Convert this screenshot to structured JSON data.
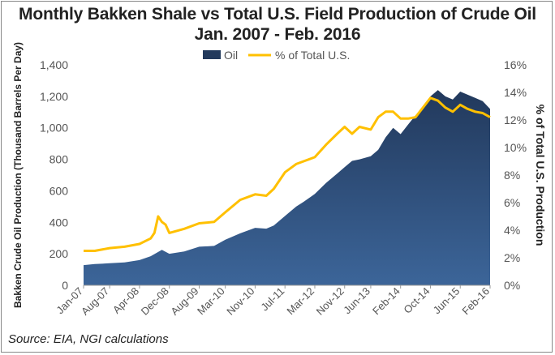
{
  "title_line1": "Monthly Bakken Shale vs Total U.S. Field Production of Crude Oil",
  "title_line2": "Jan. 2007 - Feb. 2016",
  "source": "Source: EIA, NGI calculations",
  "chart_data": {
    "type": "area",
    "title": "Monthly Bakken Shale vs Total U.S. Field Production of Crude Oil",
    "subtitle": "Jan. 2007 - Feb. 2016",
    "legend_position": "top",
    "grid": false,
    "colors": {
      "area_top": "#22395c",
      "area_bottom": "#3c6599",
      "line": "#ffc000",
      "axis_text": "#555555",
      "axis_line": "#999999"
    },
    "x_axis": {
      "ticks": [
        "Jan-07",
        "Aug-07",
        "Apr-08",
        "Dec-08",
        "Aug-09",
        "Mar-10",
        "Nov-10",
        "Jul-11",
        "Mar-12",
        "Nov-12",
        "Jun-13",
        "Feb-14",
        "Oct-14",
        "Jun-15",
        "Feb-16"
      ]
    },
    "y_left": {
      "label": "Bakken Crude Oil Production (Thousand Barrels Per Day)",
      "range": [
        0,
        1400
      ],
      "ticks": [
        "0",
        "200",
        "400",
        "600",
        "800",
        "1,000",
        "1,200",
        "1,400"
      ]
    },
    "y_right": {
      "label": "% of Total U.S. Production",
      "range": [
        0,
        16
      ],
      "ticks": [
        "0%",
        "2%",
        "4%",
        "6%",
        "8%",
        "10%",
        "12%",
        "14%",
        "16%"
      ]
    },
    "series": [
      {
        "name": "Oil",
        "kind": "area",
        "axis": "left",
        "points": [
          [
            "Jan-07",
            128
          ],
          [
            "Apr-07",
            135
          ],
          [
            "Aug-07",
            140
          ],
          [
            "Dec-07",
            145
          ],
          [
            "Apr-08",
            160
          ],
          [
            "Jul-08",
            185
          ],
          [
            "Oct-08",
            225
          ],
          [
            "Dec-08",
            200
          ],
          [
            "Apr-09",
            215
          ],
          [
            "Aug-09",
            245
          ],
          [
            "Dec-09",
            250
          ],
          [
            "Mar-10",
            290
          ],
          [
            "Jul-10",
            330
          ],
          [
            "Nov-10",
            365
          ],
          [
            "Feb-11",
            360
          ],
          [
            "Apr-11",
            380
          ],
          [
            "Jul-11",
            440
          ],
          [
            "Oct-11",
            500
          ],
          [
            "Dec-11",
            530
          ],
          [
            "Mar-12",
            580
          ],
          [
            "Jun-12",
            650
          ],
          [
            "Sep-12",
            710
          ],
          [
            "Nov-12",
            750
          ],
          [
            "Jan-13",
            790
          ],
          [
            "Mar-13",
            800
          ],
          [
            "Jun-13",
            820
          ],
          [
            "Aug-13",
            860
          ],
          [
            "Oct-13",
            940
          ],
          [
            "Dec-13",
            1000
          ],
          [
            "Feb-14",
            960
          ],
          [
            "Apr-14",
            1020
          ],
          [
            "Jun-14",
            1080
          ],
          [
            "Aug-14",
            1120
          ],
          [
            "Oct-14",
            1200
          ],
          [
            "Dec-14",
            1240
          ],
          [
            "Feb-15",
            1200
          ],
          [
            "Apr-15",
            1180
          ],
          [
            "Jun-15",
            1230
          ],
          [
            "Aug-15",
            1210
          ],
          [
            "Oct-15",
            1190
          ],
          [
            "Dec-15",
            1170
          ],
          [
            "Feb-16",
            1120
          ]
        ]
      },
      {
        "name": "% of Total U.S.",
        "kind": "line",
        "axis": "right",
        "points": [
          [
            "Jan-07",
            2.5
          ],
          [
            "Apr-07",
            2.5
          ],
          [
            "Aug-07",
            2.7
          ],
          [
            "Dec-07",
            2.8
          ],
          [
            "Apr-08",
            3.0
          ],
          [
            "Jul-08",
            3.4
          ],
          [
            "Aug-08",
            3.8
          ],
          [
            "Sep-08",
            5.0
          ],
          [
            "Oct-08",
            4.6
          ],
          [
            "Nov-08",
            4.4
          ],
          [
            "Dec-08",
            3.8
          ],
          [
            "Apr-09",
            4.1
          ],
          [
            "Aug-09",
            4.5
          ],
          [
            "Dec-09",
            4.6
          ],
          [
            "Mar-10",
            5.3
          ],
          [
            "Jul-10",
            6.2
          ],
          [
            "Nov-10",
            6.6
          ],
          [
            "Feb-11",
            6.5
          ],
          [
            "Apr-11",
            7.0
          ],
          [
            "Jul-11",
            8.2
          ],
          [
            "Oct-11",
            8.8
          ],
          [
            "Dec-11",
            9.0
          ],
          [
            "Mar-12",
            9.3
          ],
          [
            "Jun-12",
            10.2
          ],
          [
            "Sep-12",
            11.0
          ],
          [
            "Nov-12",
            11.5
          ],
          [
            "Jan-13",
            11.0
          ],
          [
            "Mar-13",
            11.5
          ],
          [
            "Jun-13",
            11.3
          ],
          [
            "Aug-13",
            12.2
          ],
          [
            "Oct-13",
            12.6
          ],
          [
            "Dec-13",
            12.6
          ],
          [
            "Feb-14",
            12.1
          ],
          [
            "Apr-14",
            12.1
          ],
          [
            "Jun-14",
            12.2
          ],
          [
            "Aug-14",
            12.9
          ],
          [
            "Oct-14",
            13.6
          ],
          [
            "Dec-14",
            13.4
          ],
          [
            "Feb-15",
            12.9
          ],
          [
            "Apr-15",
            12.6
          ],
          [
            "Jun-15",
            13.1
          ],
          [
            "Aug-15",
            12.8
          ],
          [
            "Oct-15",
            12.6
          ],
          [
            "Dec-15",
            12.5
          ],
          [
            "Feb-16",
            12.2
          ]
        ]
      }
    ]
  }
}
